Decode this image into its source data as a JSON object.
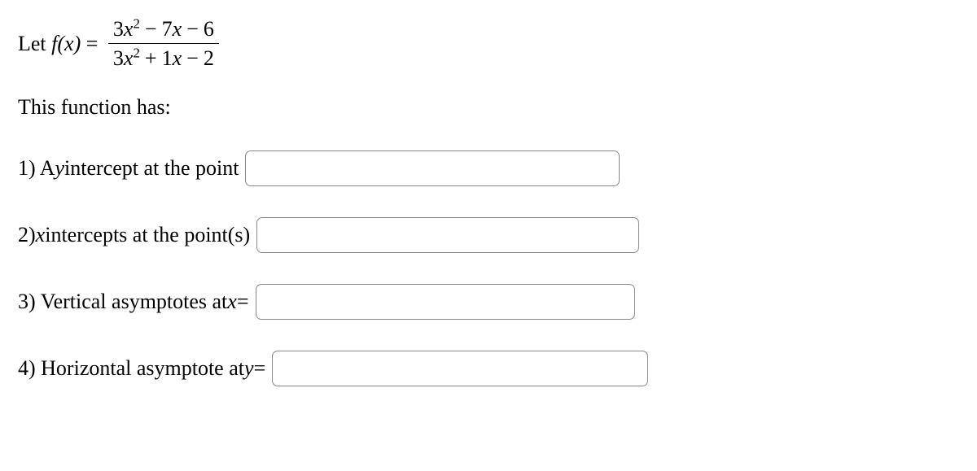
{
  "equation": {
    "lead": "Let ",
    "func": "f(x)",
    "equals": " = ",
    "numerator": {
      "a_coef": "3",
      "a_var": "x",
      "a_pow": "2",
      "op1": "−",
      "b_coef": "7",
      "b_var": "x",
      "op2": "−",
      "c": "6"
    },
    "denominator": {
      "a_coef": "3",
      "a_var": "x",
      "a_pow": "2",
      "op1": "+",
      "b_coef": "1",
      "b_var": "x",
      "op2": "−",
      "c": "2"
    }
  },
  "intro": "This function has:",
  "q1": {
    "label": "1) A ",
    "var": "y",
    "rest": " intercept at the point "
  },
  "q2": {
    "label": "2) ",
    "var": "x",
    "rest": " intercepts at the point(s) "
  },
  "q3": {
    "label": "3) Vertical asymptotes at ",
    "var": "x",
    "rest": " = "
  },
  "q4": {
    "label": "4) Horizontal asymptote at ",
    "var": "y",
    "rest": " = "
  },
  "answers": {
    "q1": "",
    "q2": "",
    "q3": "",
    "q4": ""
  }
}
